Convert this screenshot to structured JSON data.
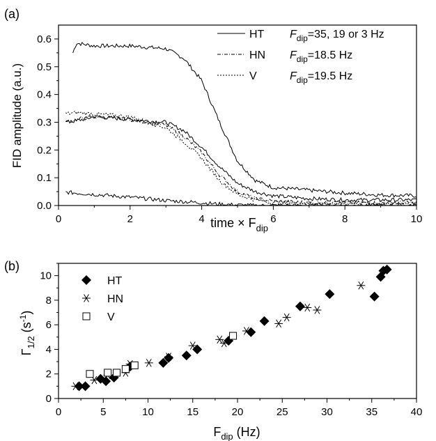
{
  "chart_data": [
    {
      "panel_label": "(a)",
      "type": "line",
      "xlabel": "time × F",
      "xlabel_sub": "dip",
      "ylabel": "FID amplitude (a.u.)",
      "xlim": [
        0,
        10
      ],
      "ylim": [
        0,
        0.65
      ],
      "x_ticks": [
        "0",
        "2",
        "4",
        "6",
        "8",
        "10"
      ],
      "y_ticks": [
        "0.0",
        "0.1",
        "0.2",
        "0.3",
        "0.4",
        "0.5",
        "0.6"
      ],
      "legend_placement": "top-right",
      "legend": [
        {
          "label": "HT",
          "style": "solid",
          "note_pre": "F",
          "note_sub": "dip",
          "note_post": "=35, 19 or 3  Hz"
        },
        {
          "label": "HN",
          "style": "dashdot",
          "note_pre": "F",
          "note_sub": "dip",
          "note_post": "=18.5  Hz"
        },
        {
          "label": "V",
          "style": "dotted",
          "note_pre": "F",
          "note_sub": "dip",
          "note_post": "=19.5  Hz"
        }
      ],
      "series": [
        {
          "name": "HT",
          "style": "solid",
          "x": [
            0.4,
            0.5,
            1,
            2,
            3,
            3.5,
            4,
            4.5,
            5,
            5.5,
            6,
            7,
            8,
            9,
            10
          ],
          "y": [
            0.55,
            0.585,
            0.575,
            0.575,
            0.565,
            0.53,
            0.45,
            0.3,
            0.16,
            0.09,
            0.065,
            0.055,
            0.045,
            0.038,
            0.035
          ]
        },
        {
          "name": "HT",
          "style": "solid",
          "x": [
            0.2,
            0.5,
            1,
            2,
            3,
            3.5,
            4,
            4.5,
            5,
            5.5,
            6,
            7,
            8,
            9,
            10
          ],
          "y": [
            0.3,
            0.305,
            0.32,
            0.31,
            0.3,
            0.27,
            0.21,
            0.14,
            0.08,
            0.05,
            0.035,
            0.025,
            0.02,
            0.02,
            0.02
          ]
        },
        {
          "name": "HT",
          "style": "solid",
          "x": [
            0.2,
            1,
            2,
            3,
            4,
            4.5,
            5,
            5.5,
            6,
            7,
            8,
            10
          ],
          "y": [
            0.048,
            0.04,
            0.03,
            0.018,
            0.01,
            0.005,
            0.002,
            0.0,
            0.0,
            0.0,
            0.0,
            0.0
          ]
        },
        {
          "name": "HN",
          "style": "dashdot",
          "x": [
            0.2,
            0.5,
            1,
            2,
            3,
            3.5,
            4,
            4.5,
            5,
            5.5,
            6,
            7,
            8,
            10
          ],
          "y": [
            0.3,
            0.31,
            0.32,
            0.31,
            0.29,
            0.25,
            0.19,
            0.11,
            0.05,
            0.025,
            0.015,
            0.01,
            0.01,
            0.01
          ]
        },
        {
          "name": "V",
          "style": "dotted",
          "x": [
            0.2,
            0.5,
            1,
            2,
            3,
            3.5,
            4,
            4.5,
            5,
            5.5,
            6,
            7,
            8,
            10
          ],
          "y": [
            0.33,
            0.335,
            0.33,
            0.32,
            0.28,
            0.23,
            0.17,
            0.09,
            0.04,
            0.02,
            0.01,
            0.008,
            0.008,
            0.008
          ]
        }
      ]
    },
    {
      "panel_label": "(b)",
      "type": "scatter",
      "xlabel": "F",
      "xlabel_sub": "dip",
      "xlabel_post": " (Hz)",
      "ylabel": "Γ",
      "ylabel_sub": "1/2",
      "ylabel_post": " (s",
      "ylabel_sup": "-1",
      "ylabel_end": ")",
      "xlim": [
        0,
        40
      ],
      "ylim": [
        0,
        11
      ],
      "x_ticks": [
        "0",
        "5",
        "10",
        "15",
        "20",
        "25",
        "30",
        "35",
        "40"
      ],
      "y_ticks": [
        "0",
        "2",
        "4",
        "6",
        "8",
        "10"
      ],
      "legend_placement": "top-left",
      "series": [
        {
          "name": "HT",
          "marker": "diamond",
          "x": [
            2.3,
            3.0,
            4.7,
            5.3,
            6.2,
            8.0,
            11.7,
            12.3,
            14.3,
            15.5,
            19.0,
            21.5,
            23.0,
            27.0,
            30.3,
            35.3,
            36.0,
            36.3,
            36.7
          ],
          "y": [
            1.0,
            1.0,
            1.6,
            1.4,
            1.7,
            2.6,
            2.9,
            3.3,
            3.5,
            4.0,
            4.7,
            5.4,
            6.3,
            7.5,
            8.5,
            8.3,
            9.9,
            10.4,
            10.5
          ]
        },
        {
          "name": "HN",
          "marker": "asterisk",
          "x": [
            1.9,
            4.0,
            5.5,
            7.5,
            8.0,
            10.1,
            12.3,
            15.0,
            18.0,
            18.5,
            21.0,
            24.6,
            25.5,
            27.8,
            28.9,
            33.8
          ],
          "y": [
            1.0,
            1.5,
            1.9,
            2.1,
            2.8,
            2.9,
            3.4,
            4.3,
            4.8,
            4.5,
            5.5,
            6.1,
            6.6,
            7.4,
            7.2,
            9.2
          ]
        },
        {
          "name": "V",
          "marker": "square",
          "x": [
            3.5,
            5.5,
            6.5,
            7.5,
            8.5,
            19.5
          ],
          "y": [
            2.0,
            2.1,
            2.1,
            2.4,
            2.7,
            5.1
          ]
        }
      ]
    }
  ]
}
